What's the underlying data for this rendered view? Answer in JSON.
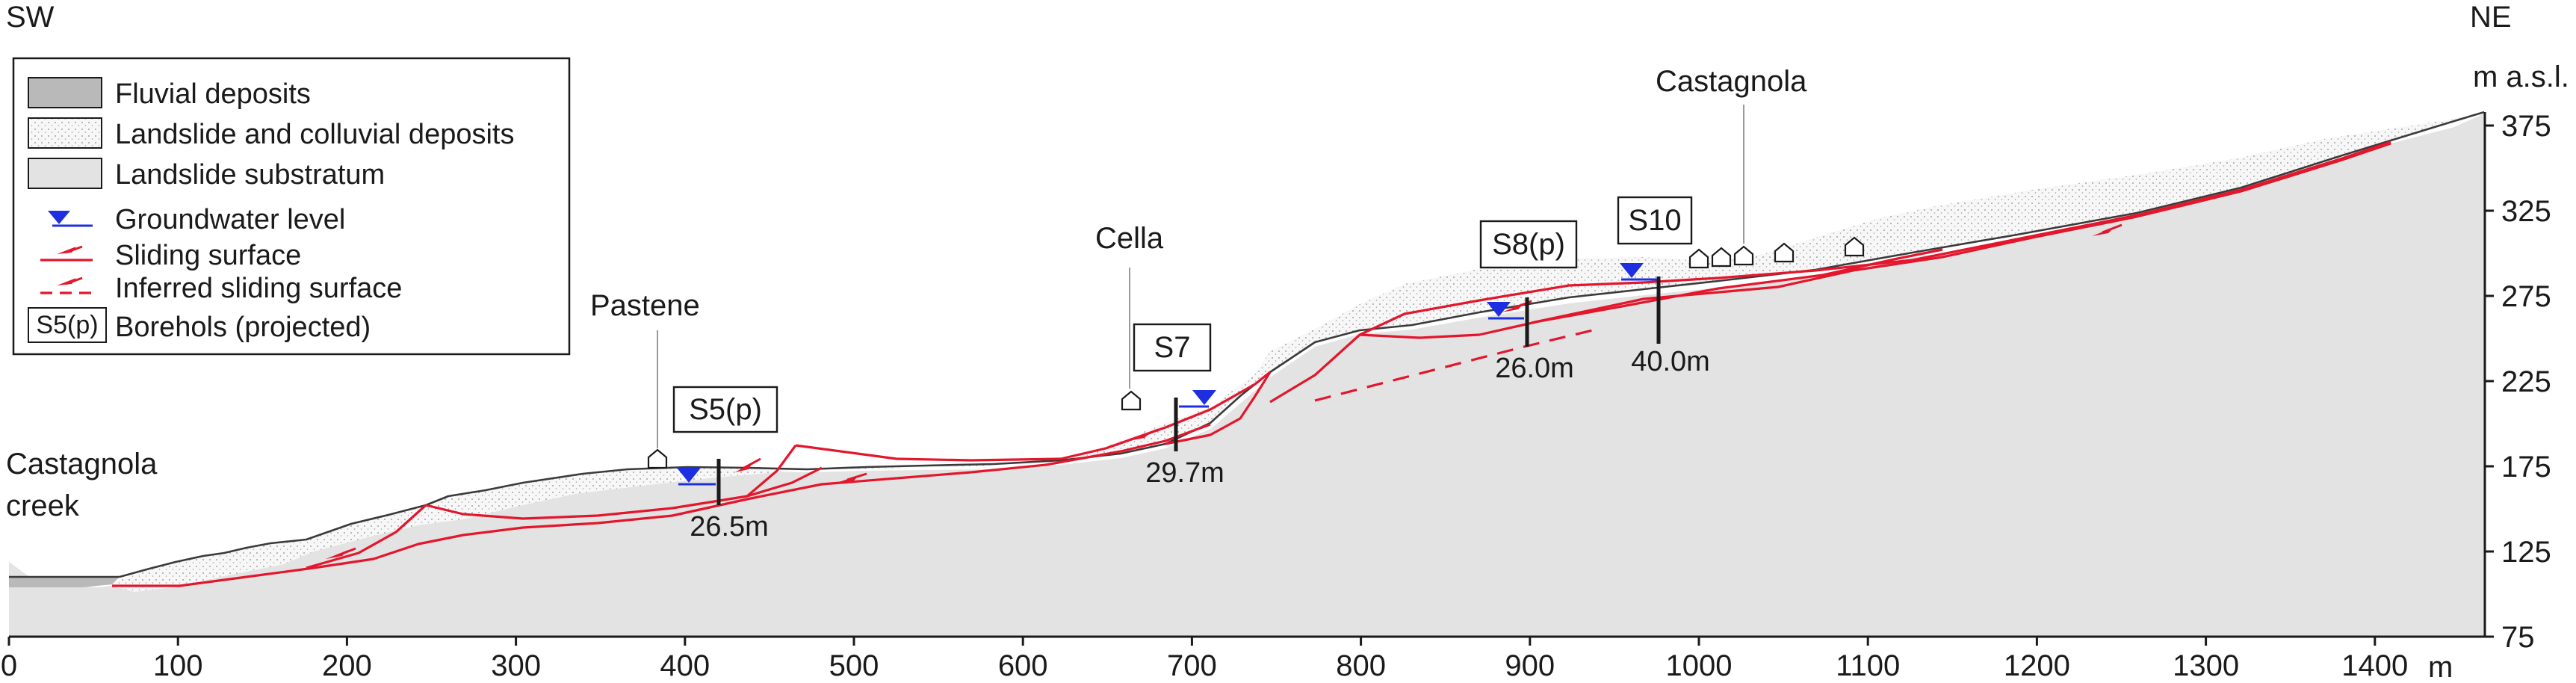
{
  "orientation": {
    "left": "SW",
    "right": "NE"
  },
  "axes": {
    "x_unit": "m",
    "x_ticks": [
      "0",
      "100",
      "200",
      "300",
      "400",
      "500",
      "600",
      "700",
      "800",
      "900",
      "1000",
      "1100",
      "1200",
      "1300",
      "1400"
    ],
    "y_unit": "m a.s.l.",
    "y_ticks": [
      "375",
      "325",
      "275",
      "225",
      "175",
      "125",
      "75"
    ],
    "x_range": [
      0,
      1460
    ],
    "y_range": [
      75,
      390
    ]
  },
  "legend": {
    "position": "top-left",
    "items": [
      {
        "label": "Fluvial deposits",
        "symbol": "grey-box"
      },
      {
        "label": "Landslide and colluvial deposits",
        "symbol": "dotted-box"
      },
      {
        "label": "Landslide substratum",
        "symbol": "light-grey-box"
      },
      {
        "label": "Groundwater level",
        "symbol": "blue-triangle-icon"
      },
      {
        "label": "Sliding surface",
        "symbol": "red-arrow-solid"
      },
      {
        "label": "Inferred sliding surface",
        "symbol": "red-arrow-dashed"
      },
      {
        "label": "Borehols (projected)",
        "symbol": "S5(p)"
      }
    ]
  },
  "places": [
    {
      "name": "Castagnola creek",
      "lines": [
        "Castagnola",
        "creek"
      ]
    },
    {
      "name": "Pastene"
    },
    {
      "name": "Cella"
    },
    {
      "name": "Castagnola"
    }
  ],
  "boreholes": [
    {
      "id": "S5(p)",
      "depth": "26.5m"
    },
    {
      "id": "S7",
      "depth": "29.7m"
    },
    {
      "id": "S8(p)",
      "depth": "26.0m"
    },
    {
      "id": "S10",
      "depth": "40.0m"
    }
  ],
  "colors": {
    "substratum": "#e3e3e3",
    "fluvial": "#b9b9b9",
    "colluvial": "#f7f7f7",
    "sliding_surface": "#e3162c",
    "groundwater": "#1d2fe0"
  }
}
